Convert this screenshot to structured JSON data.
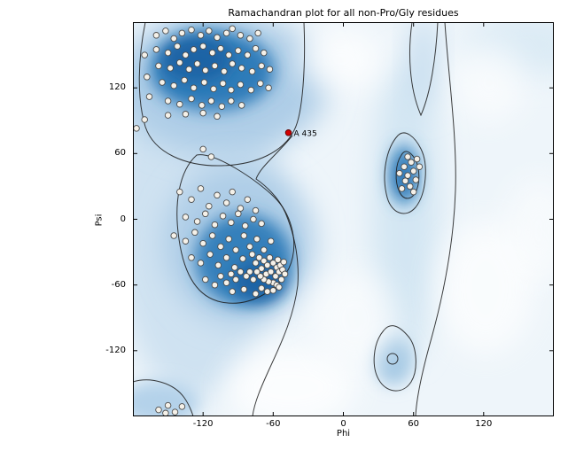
{
  "chart_data": {
    "type": "scatter",
    "title": "Ramachandran plot for all non-Pro/Gly residues",
    "xlabel": "Phi",
    "ylabel": "Psi",
    "xlim": [
      -180,
      180
    ],
    "ylim": [
      -180,
      180
    ],
    "xticks": [
      -120,
      -60,
      0,
      60,
      120
    ],
    "yticks": [
      -120,
      -60,
      0,
      60,
      120
    ],
    "grid": false,
    "legend": false,
    "background_style": {
      "base": "#eef5fa",
      "density_dark": "#1b63a5",
      "density_mid": "#3580bb",
      "contour": "#1a1a1a"
    },
    "series": [
      {
        "name": "residue",
        "marker": "circle",
        "size": 3.3,
        "fill": "#f5f1e9",
        "edge": "#4d4d4d",
        "points": [
          [
            -160,
            168
          ],
          [
            -152,
            172
          ],
          [
            -145,
            165
          ],
          [
            -138,
            170
          ],
          [
            -130,
            173
          ],
          [
            -122,
            168
          ],
          [
            -115,
            172
          ],
          [
            -108,
            166
          ],
          [
            -100,
            170
          ],
          [
            -95,
            174
          ],
          [
            -88,
            168
          ],
          [
            -80,
            165
          ],
          [
            -73,
            170
          ],
          [
            -160,
            155
          ],
          [
            -150,
            152
          ],
          [
            -142,
            158
          ],
          [
            -135,
            150
          ],
          [
            -128,
            155
          ],
          [
            -120,
            158
          ],
          [
            -112,
            152
          ],
          [
            -105,
            156
          ],
          [
            -98,
            150
          ],
          [
            -90,
            154
          ],
          [
            -82,
            150
          ],
          [
            -75,
            156
          ],
          [
            -68,
            152
          ],
          [
            -158,
            140
          ],
          [
            -148,
            138
          ],
          [
            -140,
            143
          ],
          [
            -132,
            137
          ],
          [
            -125,
            142
          ],
          [
            -118,
            136
          ],
          [
            -110,
            140
          ],
          [
            -102,
            135
          ],
          [
            -95,
            142
          ],
          [
            -87,
            138
          ],
          [
            -78,
            135
          ],
          [
            -70,
            140
          ],
          [
            -63,
            137
          ],
          [
            -155,
            125
          ],
          [
            -145,
            122
          ],
          [
            -136,
            127
          ],
          [
            -128,
            120
          ],
          [
            -119,
            125
          ],
          [
            -111,
            119
          ],
          [
            -103,
            124
          ],
          [
            -96,
            118
          ],
          [
            -88,
            123
          ],
          [
            -79,
            118
          ],
          [
            -71,
            124
          ],
          [
            -64,
            120
          ],
          [
            -150,
            108
          ],
          [
            -140,
            105
          ],
          [
            -130,
            110
          ],
          [
            -121,
            104
          ],
          [
            -113,
            108
          ],
          [
            -104,
            103
          ],
          [
            -96,
            108
          ],
          [
            -87,
            104
          ],
          [
            -150,
            95
          ],
          [
            -135,
            96
          ],
          [
            -120,
            97
          ],
          [
            -108,
            94
          ],
          [
            -170,
            150
          ],
          [
            -168,
            130
          ],
          [
            -166,
            112
          ],
          [
            -170,
            91
          ],
          [
            -177,
            83
          ],
          [
            -120,
            64
          ],
          [
            -113,
            57
          ],
          [
            -140,
            25
          ],
          [
            -130,
            18
          ],
          [
            -122,
            28
          ],
          [
            -115,
            12
          ],
          [
            -108,
            22
          ],
          [
            -100,
            15
          ],
          [
            -95,
            25
          ],
          [
            -88,
            10
          ],
          [
            -82,
            18
          ],
          [
            -75,
            8
          ],
          [
            -135,
            2
          ],
          [
            -125,
            -2
          ],
          [
            -118,
            5
          ],
          [
            -110,
            -5
          ],
          [
            -103,
            3
          ],
          [
            -96,
            -3
          ],
          [
            -90,
            5
          ],
          [
            -84,
            -6
          ],
          [
            -77,
            0
          ],
          [
            -70,
            -4
          ],
          [
            -145,
            -15
          ],
          [
            -135,
            -20
          ],
          [
            -127,
            -12
          ],
          [
            -120,
            -22
          ],
          [
            -112,
            -15
          ],
          [
            -105,
            -25
          ],
          [
            -98,
            -18
          ],
          [
            -92,
            -28
          ],
          [
            -85,
            -15
          ],
          [
            -80,
            -25
          ],
          [
            -74,
            -18
          ],
          [
            -68,
            -28
          ],
          [
            -62,
            -20
          ],
          [
            -130,
            -35
          ],
          [
            -122,
            -40
          ],
          [
            -114,
            -32
          ],
          [
            -107,
            -42
          ],
          [
            -100,
            -35
          ],
          [
            -93,
            -44
          ],
          [
            -86,
            -36
          ],
          [
            -78,
            -32
          ],
          [
            -75,
            -40
          ],
          [
            -72,
            -35
          ],
          [
            -70,
            -45
          ],
          [
            -68,
            -38
          ],
          [
            -66,
            -50
          ],
          [
            -65,
            -42
          ],
          [
            -63,
            -35
          ],
          [
            -62,
            -48
          ],
          [
            -60,
            -40
          ],
          [
            -58,
            -52
          ],
          [
            -57,
            -44
          ],
          [
            -56,
            -37
          ],
          [
            -55,
            -48
          ],
          [
            -54,
            -42
          ],
          [
            -53,
            -55
          ],
          [
            -52,
            -46
          ],
          [
            -51,
            -39
          ],
          [
            -50,
            -50
          ],
          [
            -60,
            -58
          ],
          [
            -57,
            -60
          ],
          [
            -64,
            -57
          ],
          [
            -68,
            -55
          ],
          [
            -71,
            -52
          ],
          [
            -74,
            -48
          ],
          [
            -77,
            -55
          ],
          [
            -80,
            -48
          ],
          [
            -83,
            -52
          ],
          [
            -88,
            -48
          ],
          [
            -92,
            -55
          ],
          [
            -96,
            -50
          ],
          [
            -100,
            -58
          ],
          [
            -105,
            -52
          ],
          [
            -110,
            -60
          ],
          [
            -118,
            -55
          ],
          [
            -70,
            -63
          ],
          [
            -65,
            -66
          ],
          [
            -60,
            -65
          ],
          [
            -55,
            -62
          ],
          [
            -75,
            -68
          ],
          [
            -85,
            -64
          ],
          [
            -95,
            -66
          ],
          [
            52,
            48
          ],
          [
            55,
            40
          ],
          [
            58,
            52
          ],
          [
            60,
            44
          ],
          [
            62,
            36
          ],
          [
            57,
            30
          ],
          [
            53,
            35
          ],
          [
            65,
            48
          ],
          [
            48,
            42
          ],
          [
            55,
            57
          ],
          [
            60,
            25
          ],
          [
            50,
            28
          ],
          [
            63,
            55
          ],
          [
            -158,
            -174
          ],
          [
            -150,
            -170
          ],
          [
            -144,
            -176
          ],
          [
            -138,
            -171
          ],
          [
            -152,
            -177
          ]
        ]
      },
      {
        "name": "outlier",
        "marker": "circle",
        "size": 3.3,
        "fill": "#d40000",
        "edge": "#5c0000",
        "points": [
          [
            -47,
            79
          ]
        ]
      }
    ],
    "annotations": [
      {
        "text": "A 435",
        "phi": -47,
        "psi": 79
      }
    ]
  }
}
